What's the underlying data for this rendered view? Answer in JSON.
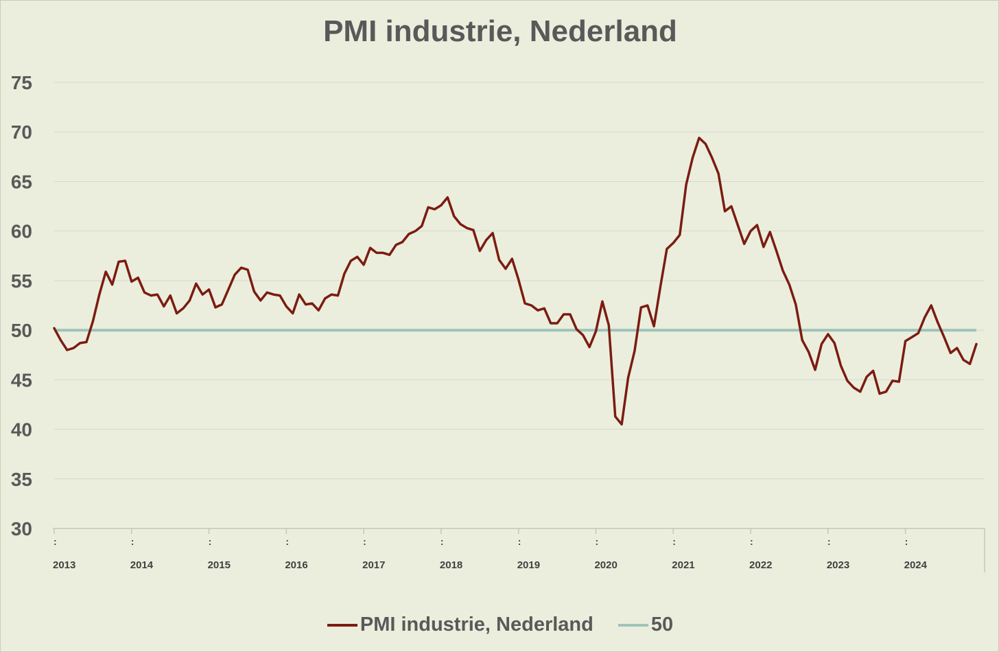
{
  "chart_data": {
    "type": "line",
    "title": "PMI industrie, Nederland",
    "xlabel": "",
    "ylabel": "",
    "ylim": [
      30,
      75
    ],
    "yticks": [
      "30",
      "35",
      "40",
      "45",
      "50",
      "55",
      "60",
      "65",
      "70",
      "75"
    ],
    "x_tick_labels": [
      "2013",
      "2014",
      "2015",
      "2016",
      "2017",
      "2018",
      "2019",
      "2020",
      "2021",
      "2022",
      "2023",
      "2024"
    ],
    "x_tick_separator": ":",
    "x_start": "2013-01",
    "grid": true,
    "legend_position": "bottom",
    "series": [
      {
        "name": "PMI industrie, Nederland",
        "color": "#7b1c12",
        "values": [
          50.2,
          49.0,
          48.0,
          48.2,
          48.7,
          48.8,
          50.9,
          53.6,
          55.9,
          54.6,
          56.9,
          57.0,
          54.9,
          55.3,
          53.8,
          53.5,
          53.6,
          52.4,
          53.5,
          51.7,
          52.2,
          53.0,
          54.7,
          53.6,
          54.1,
          52.3,
          52.6,
          54.1,
          55.6,
          56.3,
          56.1,
          53.9,
          53.0,
          53.8,
          53.6,
          53.5,
          52.4,
          51.7,
          53.6,
          52.6,
          52.7,
          52.0,
          53.2,
          53.6,
          53.5,
          55.7,
          57.0,
          57.4,
          56.6,
          58.3,
          57.8,
          57.8,
          57.6,
          58.6,
          58.9,
          59.7,
          60.0,
          60.5,
          62.4,
          62.2,
          62.6,
          63.4,
          61.5,
          60.7,
          60.3,
          60.1,
          58.0,
          59.1,
          59.8,
          57.1,
          56.2,
          57.2,
          55.1,
          52.7,
          52.5,
          52.0,
          52.2,
          50.7,
          50.7,
          51.6,
          51.6,
          50.1,
          49.5,
          48.3,
          49.9,
          52.9,
          50.5,
          41.3,
          40.5,
          45.2,
          47.9,
          52.3,
          52.5,
          50.4,
          54.4,
          58.2,
          58.8,
          59.6,
          64.7,
          67.4,
          69.4,
          68.8,
          67.4,
          65.8,
          62.0,
          62.5,
          60.6,
          58.7,
          60.0,
          60.6,
          58.4,
          59.9,
          58.0,
          56.0,
          54.6,
          52.6,
          49.0,
          47.8,
          46.0,
          48.6,
          49.6,
          48.7,
          46.4,
          44.9,
          44.2,
          43.8,
          45.3,
          45.9,
          43.6,
          43.8,
          44.9,
          44.8,
          48.9,
          49.3,
          49.7,
          51.3,
          52.5,
          50.8,
          49.3,
          47.7,
          48.2,
          47.0,
          46.6,
          48.6
        ]
      },
      {
        "name": "50",
        "color": "#9ec4b9",
        "values": [
          50,
          50
        ]
      }
    ]
  }
}
